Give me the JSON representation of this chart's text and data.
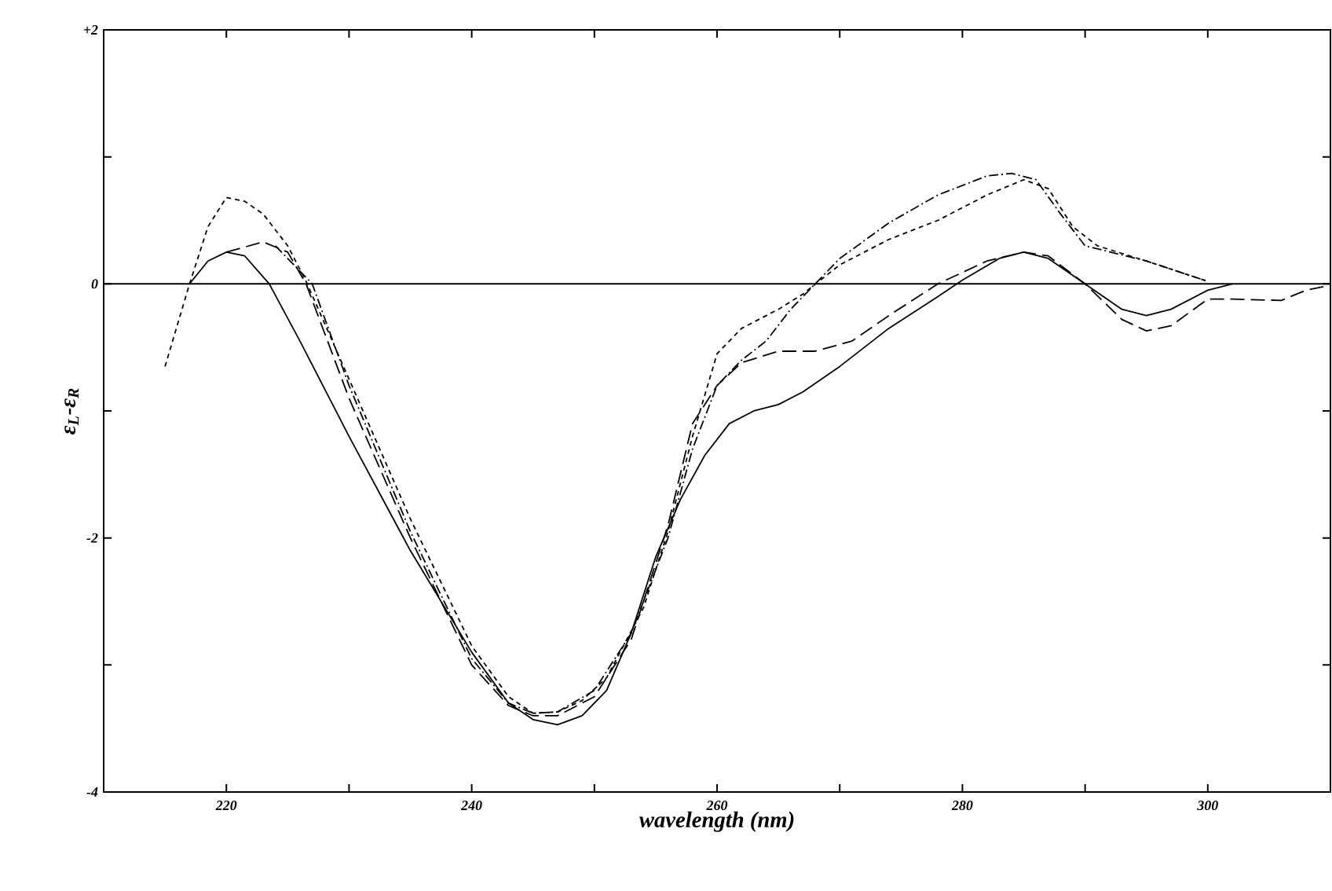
{
  "chart_data": {
    "type": "line",
    "xlabel": "wavelength (nm)",
    "ylabel": "ε$_{L}$-ε$_{R}$",
    "xlim": [
      210,
      310
    ],
    "ylim": [
      -4,
      2
    ],
    "xticks": [
      220,
      {
        "value": 230,
        "label": null
      },
      240,
      {
        "value": 250,
        "label": null
      },
      260,
      {
        "value": 270,
        "label": null
      },
      280,
      {
        "value": 290,
        "label": null
      },
      300
    ],
    "yticks": [
      -4,
      {
        "value": -3,
        "label": null
      },
      -2,
      {
        "value": -1,
        "label": null
      },
      0,
      {
        "value": 1,
        "label": null
      },
      {
        "value": 2,
        "label": "+2"
      }
    ],
    "grid": false,
    "ref_lines": [
      {
        "axis": "y",
        "value": 0,
        "color": "#000000"
      }
    ],
    "series": [
      {
        "color": "#000000",
        "line_style": "solid",
        "x": [
          217,
          218.5,
          220,
          221.5,
          223.5,
          226,
          230,
          235,
          240,
          243,
          245,
          247,
          249,
          251,
          253,
          255,
          257,
          259,
          261,
          263,
          265,
          267,
          270,
          274,
          278,
          280,
          283,
          285,
          287,
          290,
          293,
          295,
          297,
          300,
          302
        ],
        "values": [
          0,
          0.18,
          0.25,
          0.22,
          0,
          -0.45,
          -1.2,
          -2.1,
          -2.9,
          -3.3,
          -3.43,
          -3.47,
          -3.4,
          -3.2,
          -2.75,
          -2.15,
          -1.7,
          -1.35,
          -1.1,
          -1.0,
          -0.95,
          -0.85,
          -0.65,
          -0.35,
          -0.1,
          0.03,
          0.2,
          0.25,
          0.2,
          0,
          -0.2,
          -0.25,
          -0.2,
          -0.05,
          0
        ]
      },
      {
        "color": "#000000",
        "line_style": "dashed",
        "x": [
          215,
          217,
          218.5,
          220,
          221.5,
          223,
          225,
          226.5,
          230,
          235,
          240,
          243,
          245,
          247,
          249,
          251,
          254,
          256,
          258,
          260,
          262,
          265,
          267,
          270,
          274,
          278,
          282,
          285,
          287,
          289,
          291,
          295,
          300
        ],
        "values": [
          -0.65,
          0,
          0.45,
          0.68,
          0.65,
          0.55,
          0.3,
          0.02,
          -0.75,
          -1.85,
          -2.85,
          -3.25,
          -3.38,
          -3.37,
          -3.28,
          -3.1,
          -2.55,
          -1.95,
          -1.2,
          -0.55,
          -0.35,
          -0.2,
          -0.08,
          0.15,
          0.35,
          0.5,
          0.7,
          0.82,
          0.75,
          0.45,
          0.3,
          0.18,
          0.02
        ]
      },
      {
        "color": "#000000",
        "line_style": "dashdot",
        "x": [
          224,
          227,
          230,
          235,
          240,
          243,
          245,
          247,
          250,
          253,
          256,
          258,
          260,
          262,
          264,
          266,
          268,
          270,
          274,
          278,
          282,
          284,
          286,
          288,
          290,
          295,
          300
        ],
        "values": [
          0.3,
          0,
          -0.8,
          -1.95,
          -2.95,
          -3.3,
          -3.38,
          -3.37,
          -3.2,
          -2.75,
          -2.0,
          -1.3,
          -0.8,
          -0.6,
          -0.45,
          -0.2,
          0,
          0.2,
          0.48,
          0.7,
          0.85,
          0.87,
          0.82,
          0.55,
          0.3,
          0.18,
          0.02
        ]
      },
      {
        "color": "#000000",
        "line_style": "longdash",
        "x": [
          220,
          223,
          225,
          226.5,
          230,
          235,
          240,
          243,
          245,
          247,
          250,
          253,
          256,
          258,
          260,
          262,
          265,
          268,
          271,
          274,
          278,
          282,
          285,
          287,
          290,
          293,
          295,
          297,
          300,
          302,
          306,
          308,
          309.5
        ],
        "values": [
          0.25,
          0.33,
          0.25,
          0,
          -0.9,
          -2.0,
          -3.0,
          -3.32,
          -3.4,
          -3.4,
          -3.25,
          -2.8,
          -1.9,
          -1.1,
          -0.8,
          -0.62,
          -0.53,
          -0.53,
          -0.45,
          -0.25,
          0,
          0.18,
          0.25,
          0.22,
          0,
          -0.28,
          -0.37,
          -0.33,
          -0.12,
          -0.12,
          -0.13,
          -0.05,
          -0.02
        ]
      }
    ]
  }
}
